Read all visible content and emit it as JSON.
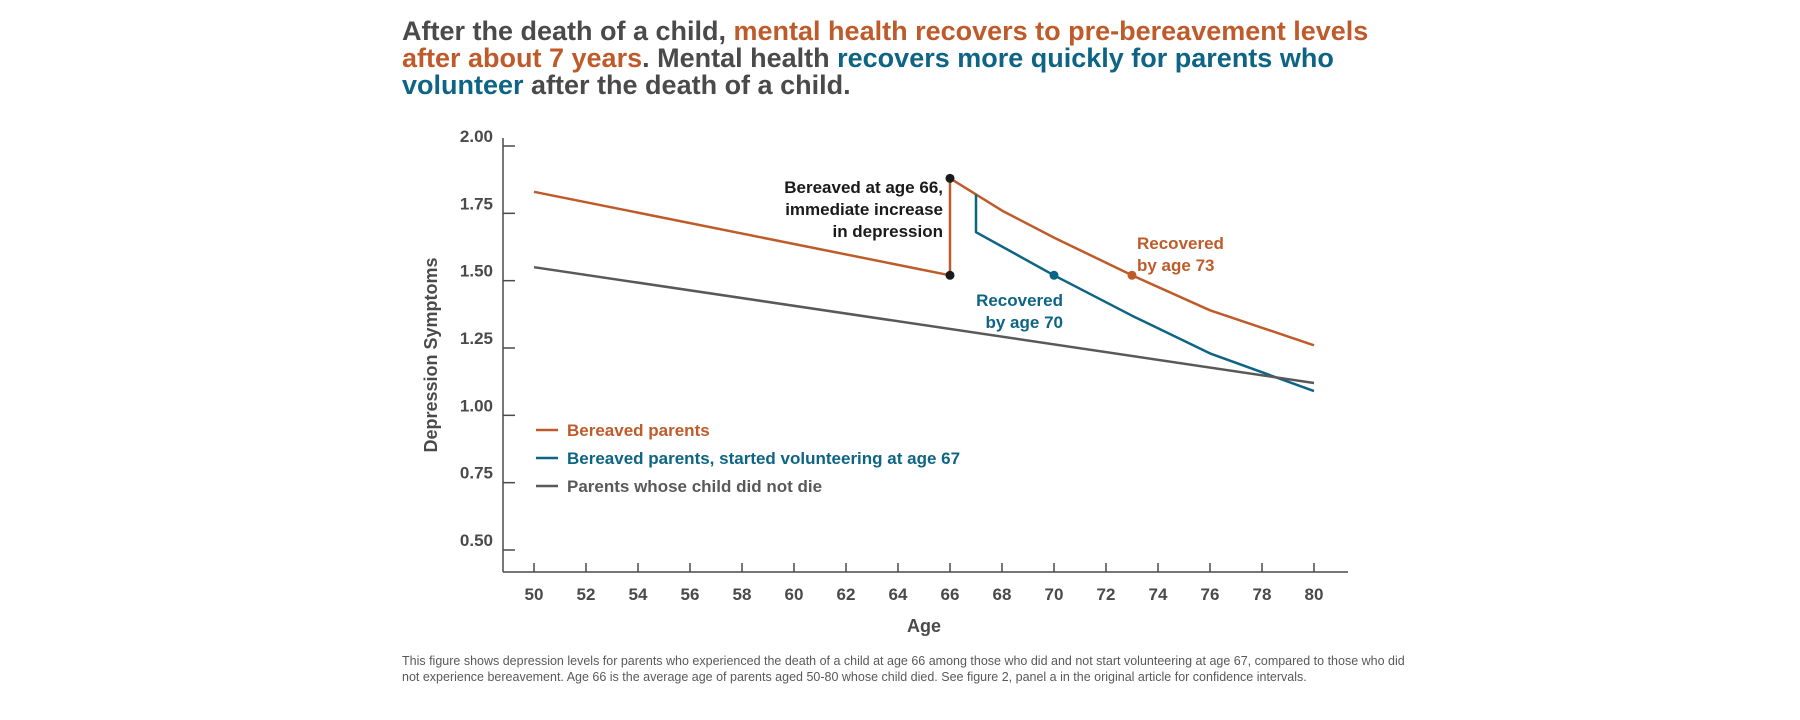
{
  "headline": {
    "part1": "After the death of a child, ",
    "part2": "mental health recovers to pre-bereavement levels after about 7 years",
    "part3": ". Mental health ",
    "part4": "recovers more quickly for parents who volunteer",
    "part5": " after the death of a child."
  },
  "caption": "This figure shows depression levels for parents who experienced the death of a child at age 66 among those who did and not start volunteering at age 67, compared to those who did not experience bereavement. Age 66 is the average age of parents aged 50-80 whose child died. See figure 2, panel a in the original article for confidence intervals.",
  "colors": {
    "bereaved": "#bf5b2a",
    "volunteer": "#0e6485",
    "not_bereaved": "#595959",
    "axis": "#4a4a4a",
    "annotation": "#1a1a1a"
  },
  "chart_data": {
    "type": "line",
    "xlabel": "Age",
    "ylabel": "Depression Symptoms",
    "xlim": [
      50,
      80
    ],
    "ylim": [
      0.5,
      2.0
    ],
    "x_ticks": [
      50,
      52,
      54,
      56,
      58,
      60,
      62,
      64,
      66,
      68,
      70,
      72,
      74,
      76,
      78,
      80
    ],
    "x_tick_labels": [
      "50",
      "52",
      "54",
      "56",
      "58",
      "60",
      "62",
      "64",
      "66",
      "68",
      "70",
      "72",
      "74",
      "76",
      "78",
      "80"
    ],
    "y_ticks": [
      0.5,
      0.75,
      1.0,
      1.25,
      1.5,
      1.75,
      2.0
    ],
    "y_tick_labels": [
      "0.50",
      "0.75",
      "1.00",
      "1.25",
      "1.50",
      "1.75",
      "2.00"
    ],
    "grid": false,
    "legend_position": "bottom-left",
    "series": [
      {
        "name": "Bereaved parents",
        "color": "#bf5b2a",
        "points": [
          [
            50,
            1.83
          ],
          [
            66,
            1.52
          ],
          [
            66,
            1.88
          ],
          [
            68,
            1.76
          ],
          [
            70,
            1.66
          ],
          [
            73,
            1.52
          ],
          [
            76,
            1.39
          ],
          [
            80,
            1.26
          ]
        ]
      },
      {
        "name": "Bereaved parents, started volunteering at age 67",
        "color": "#0e6485",
        "points": [
          [
            67,
            1.82
          ],
          [
            67,
            1.68
          ],
          [
            70,
            1.52
          ],
          [
            73,
            1.37
          ],
          [
            76,
            1.23
          ],
          [
            80,
            1.09
          ]
        ]
      },
      {
        "name": "Parents whose child did not die",
        "color": "#595959",
        "points": [
          [
            50,
            1.55
          ],
          [
            80,
            1.12
          ]
        ]
      }
    ],
    "markers": [
      {
        "x": 66,
        "y": 1.52,
        "color": "#1a1a1a"
      },
      {
        "x": 66,
        "y": 1.88,
        "color": "#1a1a1a"
      },
      {
        "x": 70,
        "y": 1.52,
        "color": "#0e6485"
      },
      {
        "x": 73,
        "y": 1.52,
        "color": "#bf5b2a"
      }
    ],
    "annotations": [
      {
        "id": "bereaved-at-66",
        "lines": [
          "Bereaved at age 66,",
          "immediate increase",
          "in depression"
        ],
        "color": "#1a1a1a"
      },
      {
        "id": "recovered-70",
        "lines": [
          "Recovered",
          "by age 70"
        ],
        "color": "#0e6485"
      },
      {
        "id": "recovered-73",
        "lines": [
          "Recovered",
          "by age 73"
        ],
        "color": "#bf5b2a"
      }
    ]
  }
}
